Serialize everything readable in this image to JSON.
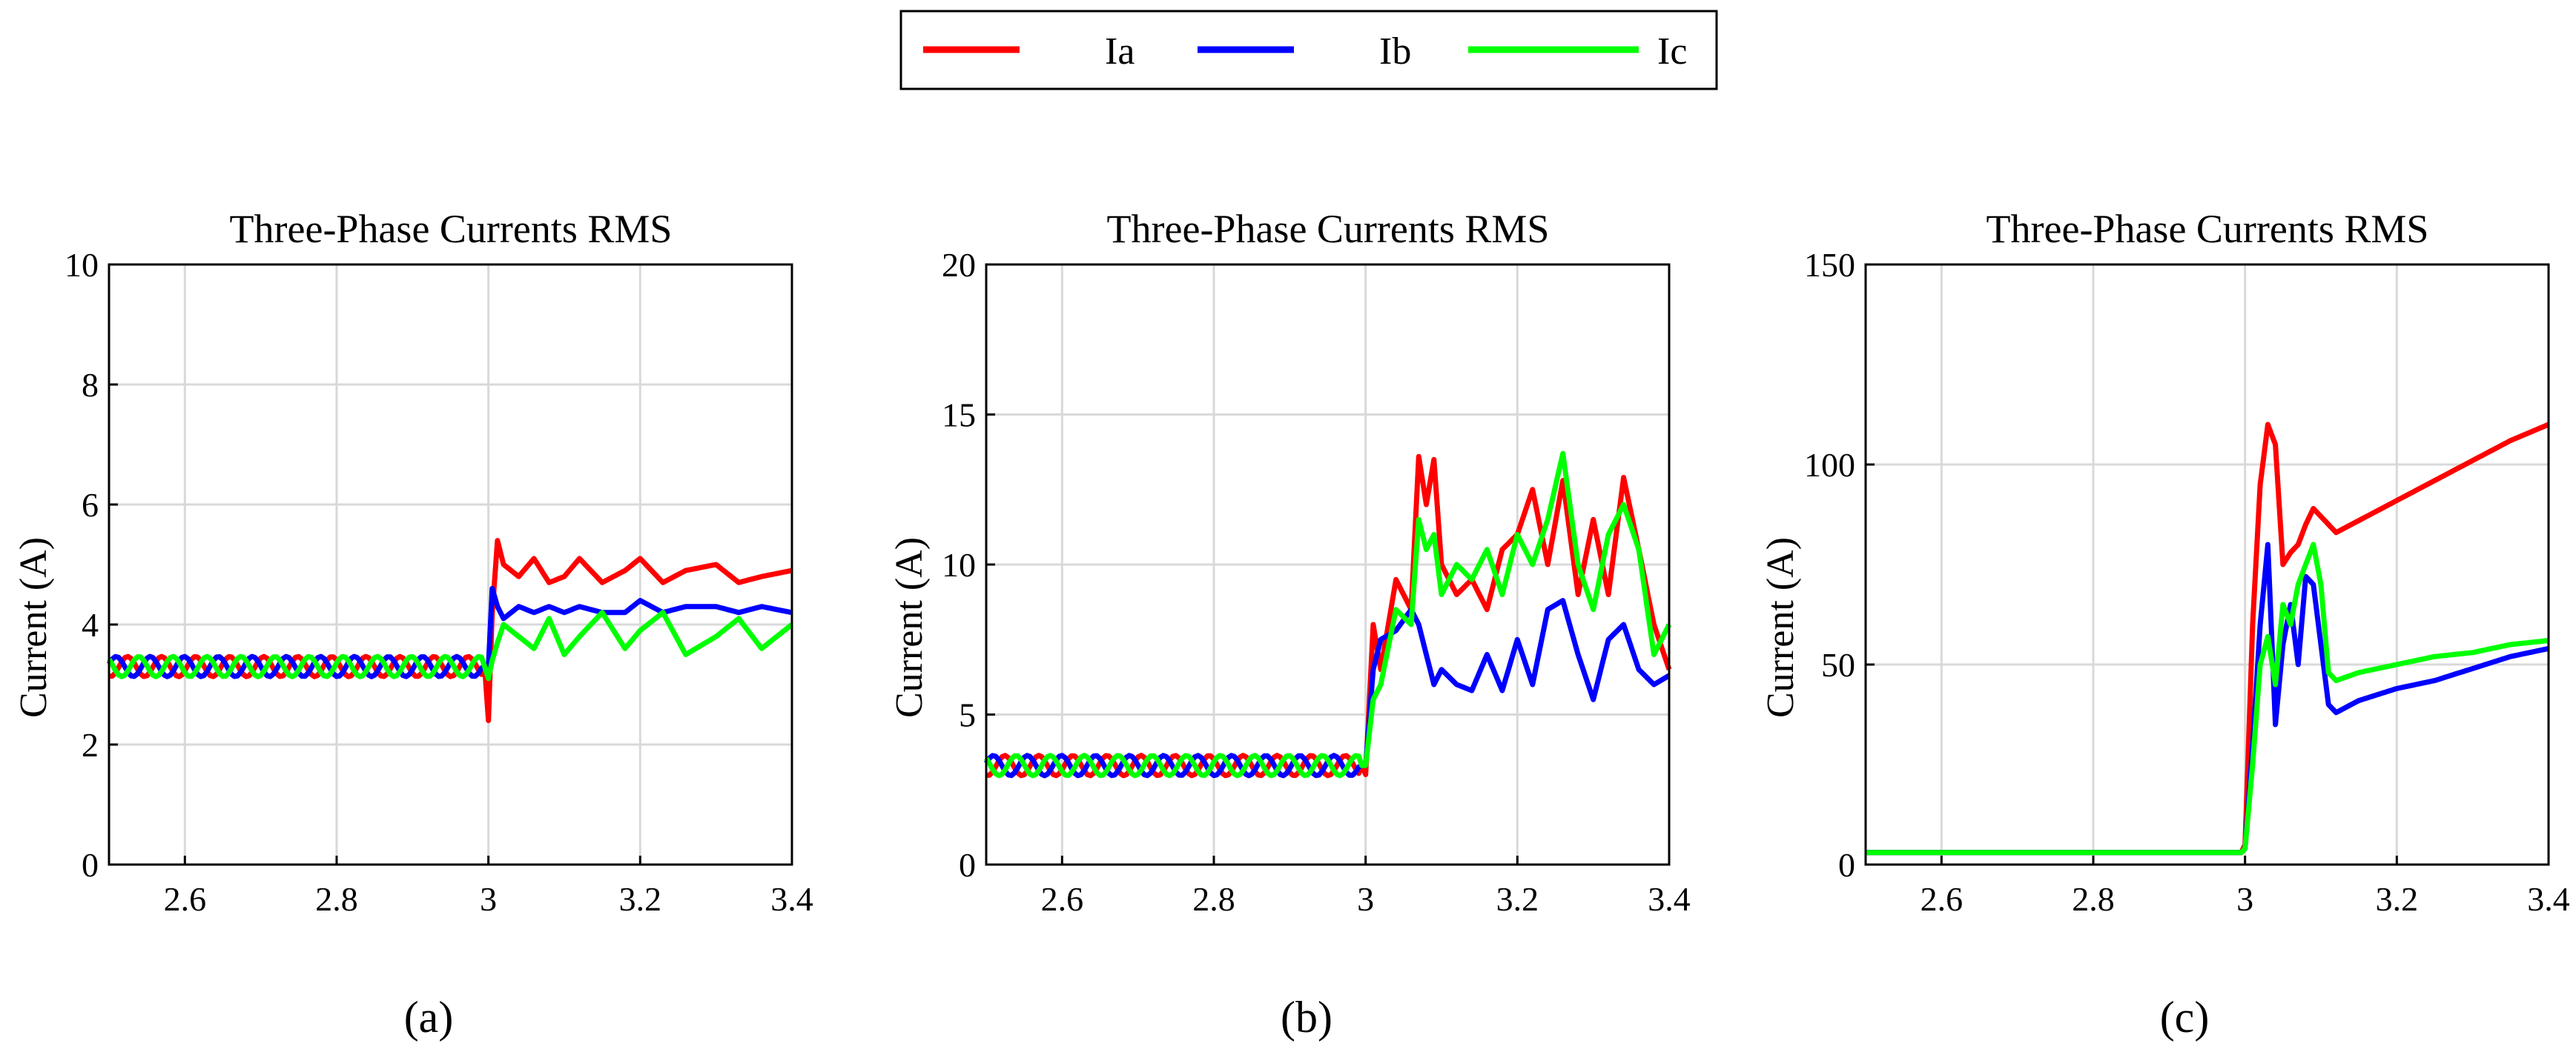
{
  "legend": {
    "placement": "top-center",
    "entries": [
      {
        "label": "Ia",
        "color": "#ff0000"
      },
      {
        "label": "Ib",
        "color": "#0000ff"
      },
      {
        "label": "Ic",
        "color": "#00ff00"
      }
    ]
  },
  "chart_data": [
    {
      "panel_label": "(a)",
      "type": "line",
      "title": "Three-Phase Currents RMS",
      "xlabel": "",
      "ylabel": "Current (A)",
      "xlim": [
        2.5,
        3.4
      ],
      "ylim": [
        0,
        10
      ],
      "xticks": [
        2.6,
        2.8,
        3.0,
        3.2,
        3.4
      ],
      "xtick_labels": [
        "2.6",
        "2.8",
        "3",
        "3.2",
        "3.4"
      ],
      "yticks": [
        0,
        2,
        4,
        6,
        8,
        10
      ],
      "ytick_labels": [
        "0",
        "2",
        "4",
        "6",
        "8",
        "10"
      ],
      "grid": true,
      "series": [
        {
          "name": "Ia",
          "color": "#ff0000",
          "x": [
            2.5,
            2.55,
            2.6,
            2.65,
            2.7,
            2.75,
            2.8,
            2.85,
            2.9,
            2.95,
            2.995,
            3.0,
            3.005,
            3.012,
            3.02,
            3.04,
            3.06,
            3.08,
            3.1,
            3.12,
            3.15,
            3.18,
            3.2,
            3.23,
            3.26,
            3.3,
            3.33,
            3.36,
            3.4
          ],
          "y": [
            3.3,
            3.3,
            3.3,
            3.3,
            3.3,
            3.3,
            3.3,
            3.3,
            3.3,
            3.3,
            3.3,
            2.4,
            4.2,
            5.4,
            5.0,
            4.8,
            5.1,
            4.7,
            4.8,
            5.1,
            4.7,
            4.9,
            5.1,
            4.7,
            4.9,
            5.0,
            4.7,
            4.8,
            4.9
          ]
        },
        {
          "name": "Ib",
          "color": "#0000ff",
          "x": [
            2.5,
            2.55,
            2.6,
            2.65,
            2.7,
            2.75,
            2.8,
            2.85,
            2.9,
            2.95,
            2.995,
            3.0,
            3.005,
            3.012,
            3.02,
            3.04,
            3.06,
            3.08,
            3.1,
            3.12,
            3.15,
            3.18,
            3.2,
            3.23,
            3.26,
            3.3,
            3.33,
            3.36,
            3.4
          ],
          "y": [
            3.3,
            3.3,
            3.3,
            3.3,
            3.3,
            3.3,
            3.3,
            3.3,
            3.3,
            3.3,
            3.3,
            3.3,
            4.6,
            4.3,
            4.1,
            4.3,
            4.2,
            4.3,
            4.2,
            4.3,
            4.2,
            4.2,
            4.4,
            4.2,
            4.3,
            4.3,
            4.2,
            4.3,
            4.2
          ]
        },
        {
          "name": "Ic",
          "color": "#00ff00",
          "x": [
            2.5,
            2.55,
            2.6,
            2.65,
            2.7,
            2.75,
            2.8,
            2.85,
            2.9,
            2.95,
            2.995,
            3.0,
            3.005,
            3.012,
            3.02,
            3.04,
            3.06,
            3.08,
            3.1,
            3.12,
            3.15,
            3.18,
            3.2,
            3.23,
            3.26,
            3.3,
            3.33,
            3.36,
            3.4
          ],
          "y": [
            3.3,
            3.3,
            3.3,
            3.3,
            3.3,
            3.3,
            3.3,
            3.3,
            3.3,
            3.3,
            3.3,
            3.1,
            3.4,
            3.7,
            4.0,
            3.8,
            3.6,
            4.1,
            3.5,
            3.8,
            4.2,
            3.6,
            3.9,
            4.2,
            3.5,
            3.8,
            4.1,
            3.6,
            4.0
          ]
        }
      ]
    },
    {
      "panel_label": "(b)",
      "type": "line",
      "title": "Three-Phase Currents RMS",
      "xlabel": "",
      "ylabel": "Current (A)",
      "xlim": [
        2.5,
        3.4
      ],
      "ylim": [
        0,
        20
      ],
      "xticks": [
        2.6,
        2.8,
        3.0,
        3.2,
        3.4
      ],
      "xtick_labels": [
        "2.6",
        "2.8",
        "3",
        "3.2",
        "3.4"
      ],
      "yticks": [
        0,
        5,
        10,
        15,
        20
      ],
      "ytick_labels": [
        "0",
        "5",
        "10",
        "15",
        "20"
      ],
      "grid": true,
      "series": [
        {
          "name": "Ia",
          "color": "#ff0000",
          "x": [
            2.5,
            2.55,
            2.6,
            2.65,
            2.7,
            2.75,
            2.8,
            2.85,
            2.9,
            2.95,
            2.995,
            3.0,
            3.01,
            3.02,
            3.04,
            3.06,
            3.07,
            3.08,
            3.09,
            3.1,
            3.12,
            3.14,
            3.16,
            3.18,
            3.2,
            3.22,
            3.24,
            3.26,
            3.28,
            3.3,
            3.32,
            3.34,
            3.36,
            3.38,
            3.4
          ],
          "y": [
            3.3,
            3.3,
            3.3,
            3.3,
            3.3,
            3.3,
            3.3,
            3.3,
            3.3,
            3.3,
            3.3,
            3.0,
            8.0,
            6.5,
            9.5,
            8.5,
            13.6,
            12.0,
            13.5,
            10.0,
            9.0,
            9.5,
            8.5,
            10.5,
            11.0,
            12.5,
            10.0,
            12.8,
            9.0,
            11.5,
            9.0,
            12.9,
            10.5,
            8.0,
            6.5
          ]
        },
        {
          "name": "Ib",
          "color": "#0000ff",
          "x": [
            2.5,
            2.55,
            2.6,
            2.65,
            2.7,
            2.75,
            2.8,
            2.85,
            2.9,
            2.95,
            2.995,
            3.0,
            3.01,
            3.02,
            3.04,
            3.06,
            3.07,
            3.08,
            3.09,
            3.1,
            3.12,
            3.14,
            3.16,
            3.18,
            3.2,
            3.22,
            3.24,
            3.26,
            3.28,
            3.3,
            3.32,
            3.34,
            3.36,
            3.38,
            3.4
          ],
          "y": [
            3.3,
            3.3,
            3.3,
            3.3,
            3.3,
            3.3,
            3.3,
            3.3,
            3.3,
            3.3,
            3.3,
            3.3,
            6.5,
            7.5,
            7.8,
            8.5,
            8.0,
            7.0,
            6.0,
            6.5,
            6.0,
            5.8,
            7.0,
            5.8,
            7.5,
            6.0,
            8.5,
            8.8,
            7.0,
            5.5,
            7.5,
            8.0,
            6.5,
            6.0,
            6.3
          ]
        },
        {
          "name": "Ic",
          "color": "#00ff00",
          "x": [
            2.5,
            2.55,
            2.6,
            2.65,
            2.7,
            2.75,
            2.8,
            2.85,
            2.9,
            2.95,
            2.995,
            3.0,
            3.01,
            3.02,
            3.04,
            3.06,
            3.07,
            3.08,
            3.09,
            3.1,
            3.12,
            3.14,
            3.16,
            3.18,
            3.2,
            3.22,
            3.24,
            3.26,
            3.28,
            3.3,
            3.32,
            3.34,
            3.36,
            3.38,
            3.4
          ],
          "y": [
            3.3,
            3.3,
            3.3,
            3.3,
            3.3,
            3.3,
            3.3,
            3.3,
            3.3,
            3.3,
            3.3,
            3.3,
            5.5,
            6.0,
            8.5,
            8.0,
            11.5,
            10.5,
            11.0,
            9.0,
            10.0,
            9.5,
            10.5,
            9.0,
            11.0,
            10.0,
            11.5,
            13.7,
            10.0,
            8.5,
            11.0,
            12.0,
            10.5,
            7.0,
            8.0
          ]
        }
      ]
    },
    {
      "panel_label": "(c)",
      "type": "line",
      "title": "Three-Phase Currents RMS",
      "xlabel": "",
      "ylabel": "Current (A)",
      "xlim": [
        2.5,
        3.4
      ],
      "ylim": [
        0,
        150
      ],
      "xticks": [
        2.6,
        2.8,
        3.0,
        3.2,
        3.4
      ],
      "xtick_labels": [
        "2.6",
        "2.8",
        "3",
        "3.2",
        "3.4"
      ],
      "yticks": [
        0,
        50,
        100,
        150
      ],
      "ytick_labels": [
        "0",
        "50",
        "100",
        "150"
      ],
      "grid": true,
      "series": [
        {
          "name": "Ia",
          "color": "#ff0000",
          "x": [
            2.5,
            2.6,
            2.7,
            2.8,
            2.9,
            2.995,
            3.0,
            3.01,
            3.02,
            3.03,
            3.04,
            3.05,
            3.06,
            3.07,
            3.08,
            3.09,
            3.1,
            3.12,
            3.15,
            3.2,
            3.25,
            3.3,
            3.35,
            3.4
          ],
          "y": [
            3.0,
            3.0,
            3.0,
            3.0,
            3.0,
            3.0,
            5.0,
            60.0,
            95.0,
            110.0,
            105.0,
            75.0,
            78.0,
            80.0,
            85.0,
            89.0,
            87.0,
            83.0,
            86.0,
            91.0,
            96.0,
            101.0,
            106.0,
            110.0
          ]
        },
        {
          "name": "Ib",
          "color": "#0000ff",
          "x": [
            2.5,
            2.6,
            2.7,
            2.8,
            2.9,
            2.995,
            3.0,
            3.01,
            3.02,
            3.03,
            3.04,
            3.05,
            3.06,
            3.07,
            3.08,
            3.09,
            3.1,
            3.11,
            3.12,
            3.15,
            3.2,
            3.25,
            3.3,
            3.35,
            3.4
          ],
          "y": [
            3.0,
            3.0,
            3.0,
            3.0,
            3.0,
            3.0,
            4.0,
            30.0,
            60.0,
            80.0,
            35.0,
            55.0,
            65.0,
            50.0,
            72.0,
            70.0,
            55.0,
            40.0,
            38.0,
            41.0,
            44.0,
            46.0,
            49.0,
            52.0,
            54.0
          ]
        },
        {
          "name": "Ic",
          "color": "#00ff00",
          "x": [
            2.5,
            2.6,
            2.7,
            2.8,
            2.9,
            2.995,
            3.0,
            3.01,
            3.02,
            3.03,
            3.04,
            3.05,
            3.06,
            3.07,
            3.08,
            3.09,
            3.1,
            3.11,
            3.12,
            3.15,
            3.2,
            3.25,
            3.3,
            3.35,
            3.4
          ],
          "y": [
            3.0,
            3.0,
            3.0,
            3.0,
            3.0,
            3.0,
            4.0,
            25.0,
            50.0,
            57.0,
            45.0,
            65.0,
            60.0,
            70.0,
            75.0,
            80.0,
            70.0,
            48.0,
            46.0,
            48.0,
            50.0,
            52.0,
            53.0,
            55.0,
            56.0
          ]
        }
      ]
    }
  ]
}
